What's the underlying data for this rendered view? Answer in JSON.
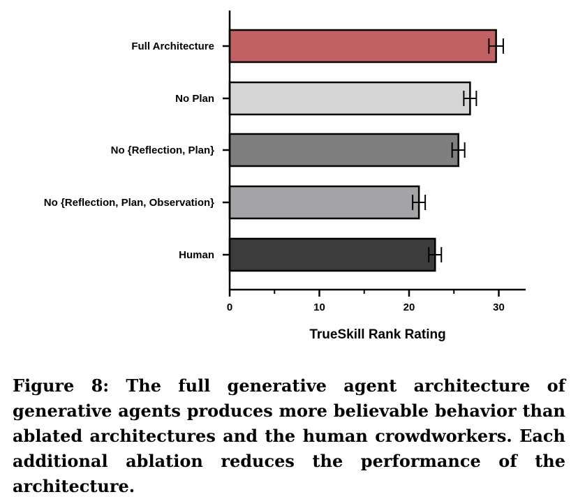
{
  "chart_data": {
    "type": "bar",
    "orientation": "horizontal",
    "categories": [
      "Full Architecture",
      "No Plan",
      "No {Reflection, Plan}",
      "No {Reflection, Plan, Observation}",
      "Human"
    ],
    "values": [
      29.7,
      26.8,
      25.5,
      21.1,
      22.9
    ],
    "errors": [
      0.8,
      0.7,
      0.7,
      0.7,
      0.7
    ],
    "colors": [
      "#c26161",
      "#d6d6d6",
      "#7f7f7f",
      "#a3a3a8",
      "#3c3c3c"
    ],
    "xlabel": "TrueSkill Rank Rating",
    "xlim": [
      0,
      33
    ],
    "xticks": [
      0,
      10,
      20,
      30
    ],
    "xticks_minor": [
      5,
      15,
      25
    ],
    "grid": false
  },
  "caption": "Figure 8: The full generative agent architecture of generative agents produces more believable behavior than ablated architectures and the human crowdworkers. Each additional ablation reduces the performance of the architecture."
}
